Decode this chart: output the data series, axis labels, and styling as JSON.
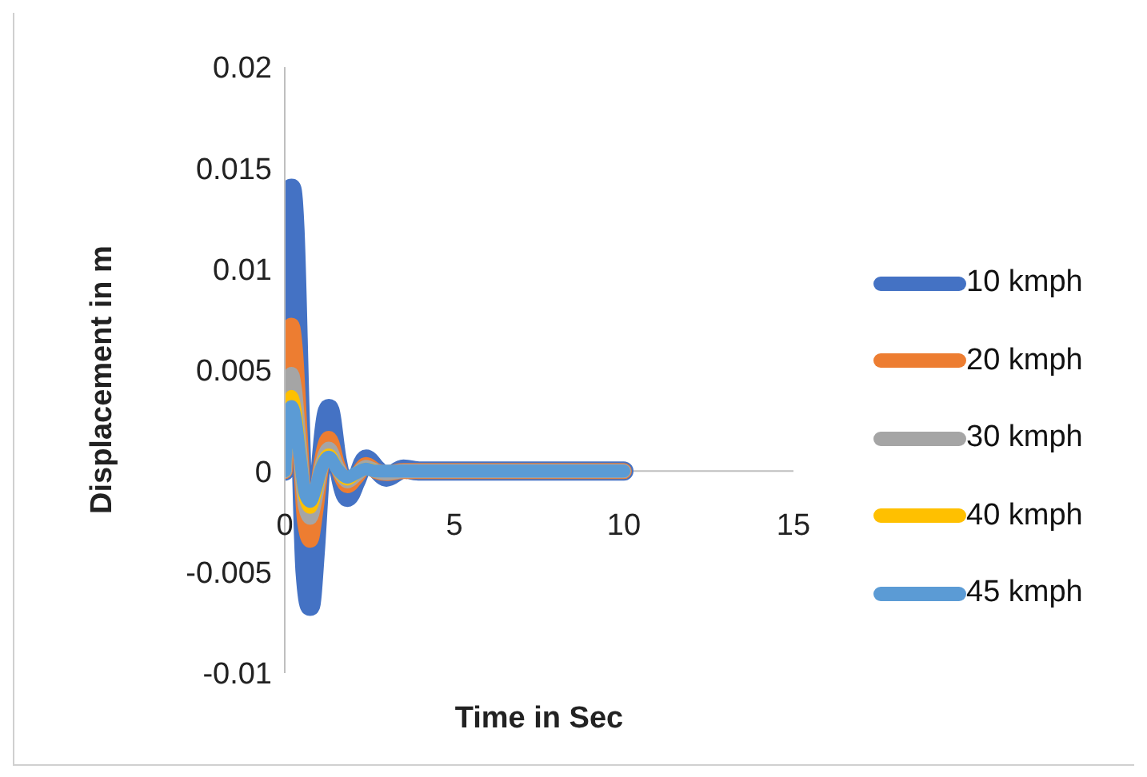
{
  "chart_data": {
    "type": "line",
    "xlabel": "Time in Sec",
    "ylabel": "Displacement in m",
    "x": [
      0,
      0.1,
      0.2,
      0.3,
      0.45,
      0.6,
      0.75,
      0.9,
      1.05,
      1.3,
      1.55,
      1.85,
      2.1,
      2.4,
      2.7,
      3,
      3.5,
      4,
      5,
      6,
      7,
      8,
      9,
      10
    ],
    "series": [
      {
        "name": "10 kmph",
        "color": "#4472c4",
        "values": [
          0,
          0.011,
          0.014,
          0.012,
          0.003,
          -0.005,
          -0.0067,
          -0.004,
          0,
          0.0031,
          0.0005,
          -0.0013,
          -0.0005,
          0.0006,
          0.0001,
          -0.0003,
          0.0001,
          0,
          0,
          0,
          0,
          0,
          0,
          0
        ]
      },
      {
        "name": "20 kmph",
        "color": "#ed7d31",
        "values": [
          0,
          0.0055,
          0.0072,
          0.006,
          0.0015,
          -0.0025,
          -0.0034,
          -0.002,
          0,
          0.0016,
          0.0003,
          -0.0007,
          -0.0003,
          0.0003,
          0,
          -0.0001,
          0,
          0,
          0,
          0,
          0,
          0,
          0,
          0
        ]
      },
      {
        "name": "30 kmph",
        "color": "#a5a5a5",
        "values": [
          0,
          0.0037,
          0.0048,
          0.004,
          0.001,
          -0.0017,
          -0.0023,
          -0.0014,
          0,
          0.0011,
          0.0002,
          -0.0005,
          -0.0002,
          0.0002,
          0,
          -0.0001,
          0,
          0,
          0,
          0,
          0,
          0,
          0,
          0
        ]
      },
      {
        "name": "40 kmph",
        "color": "#ffc000",
        "values": [
          0,
          0.0029,
          0.0037,
          0.0031,
          0.0008,
          -0.0013,
          -0.0018,
          -0.0011,
          0,
          0.0008,
          0.0001,
          -0.0004,
          -0.0001,
          0.0001,
          0,
          null,
          null,
          null,
          null,
          null,
          null,
          null,
          null,
          null
        ]
      },
      {
        "name": "45 kmph",
        "color": "#5b9bd5",
        "values": [
          0,
          0.0025,
          0.0032,
          0.0027,
          0.0007,
          -0.0011,
          -0.0015,
          -0.0009,
          0,
          0.0007,
          0.0001,
          -0.0003,
          -0.0001,
          0.0001,
          0,
          0,
          0,
          0,
          0,
          0,
          0,
          0,
          0,
          0
        ]
      }
    ],
    "xlim": [
      0,
      15
    ],
    "xticks": [
      0,
      5,
      10,
      15
    ],
    "ylim": [
      -0.01,
      0.02
    ],
    "yticks": [
      -0.01,
      -0.005,
      0,
      0.005,
      0.01,
      0.015,
      0.02
    ],
    "grid": false,
    "legend": "right",
    "marker": "none",
    "line_style": "solid"
  }
}
